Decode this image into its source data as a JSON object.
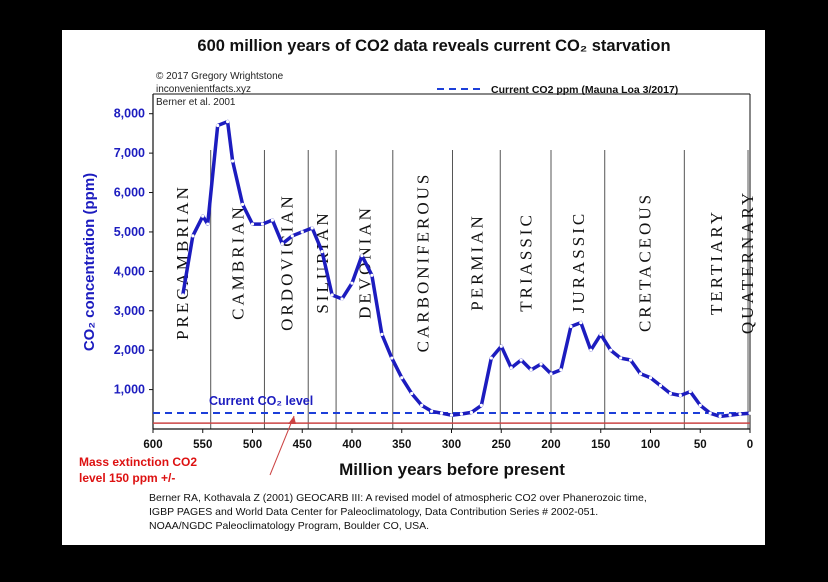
{
  "chart_data": {
    "type": "line",
    "title": "600 million years of CO2 data reveals current CO₂ starvation",
    "xlabel": "Million years before present",
    "ylabel": "CO₂ concentration (ppm)",
    "xlim": [
      600,
      0
    ],
    "ylim": [
      0,
      8500
    ],
    "x_ticks": [
      "600",
      "550",
      "500",
      "450",
      "400",
      "350",
      "300",
      "250",
      "200",
      "150",
      "100",
      "50",
      "0"
    ],
    "y_ticks": [
      "1,000",
      "2,000",
      "3,000",
      "4,000",
      "5,000",
      "6,000",
      "7,000",
      "8,000"
    ],
    "series": [
      {
        "x": [
          570,
          560,
          550,
          545,
          535,
          525,
          520,
          510,
          500,
          490,
          480,
          470,
          460,
          450,
          440,
          430,
          420,
          410,
          400,
          390,
          380,
          370,
          360,
          350,
          340,
          330,
          320,
          310,
          300,
          290,
          280,
          270,
          260,
          250,
          240,
          230,
          220,
          210,
          200,
          190,
          180,
          170,
          160,
          150,
          140,
          130,
          120,
          110,
          100,
          90,
          80,
          70,
          60,
          50,
          40,
          30,
          20,
          10,
          0
        ],
        "y": [
          3400,
          4900,
          5400,
          5200,
          7700,
          7800,
          6800,
          5700,
          5200,
          5200,
          5300,
          4700,
          4900,
          5000,
          5100,
          4500,
          3400,
          3300,
          3700,
          4400,
          3900,
          2400,
          1800,
          1300,
          900,
          600,
          450,
          400,
          350,
          380,
          420,
          600,
          1800,
          2100,
          1550,
          1750,
          1500,
          1650,
          1400,
          1500,
          2600,
          2700,
          2000,
          2400,
          2000,
          1800,
          1750,
          1400,
          1300,
          1100,
          900,
          850,
          950,
          600,
          400,
          320,
          350,
          380,
          400
        ]
      }
    ],
    "reference_line": {
      "label": "Current CO2 ppm (Mauna Loa 3/2017)",
      "value": 405
    },
    "annotations": [
      {
        "text": "Current CO₂ level"
      },
      {
        "text": "Mass extinction CO2 level 150 ppm +/-",
        "value": 150
      }
    ],
    "periods": [
      "PRECAMBRIAN",
      "CAMBRIAN",
      "ORDOVICIAN",
      "SILURIAN",
      "DEVONIAN",
      "CARBONIFEROUS",
      "PERMIAN",
      "TRIASSIC",
      "JURASSIC",
      "CRETACEOUS",
      "TERTIARY",
      "QUATERNARY"
    ],
    "period_boundaries": [
      542,
      488,
      444,
      416,
      359,
      299,
      251,
      200,
      146,
      66,
      2
    ],
    "credits": [
      "© 2017 Gregory Wrightstone",
      "inconvenientfacts.xyz",
      "Berner et al. 2001"
    ],
    "grid": false,
    "legend_position": "top-right"
  },
  "annotation_text": {
    "current_level": "Current CO₂ level",
    "extinction_line1": "Mass extinction CO2",
    "extinction_line2": "level 150 ppm +/-"
  },
  "source": [
    "Berner RA, Kothavala Z (2001) GEOCARB III: A revised model of atmospheric CO2 over Phanerozoic time,",
    "IGBP PAGES and World Data Center for Paleoclimatology, Data Contribution Series # 2002-051.",
    "NOAA/NGDC Paleoclimatology Program, Boulder CO, USA."
  ],
  "colors": {
    "series": "#1c1cbf",
    "reference": "#1c3fd9",
    "extinction_line": "#c44",
    "extinction_text": "#dd1111",
    "axis": "#111111",
    "background": "#000000"
  }
}
